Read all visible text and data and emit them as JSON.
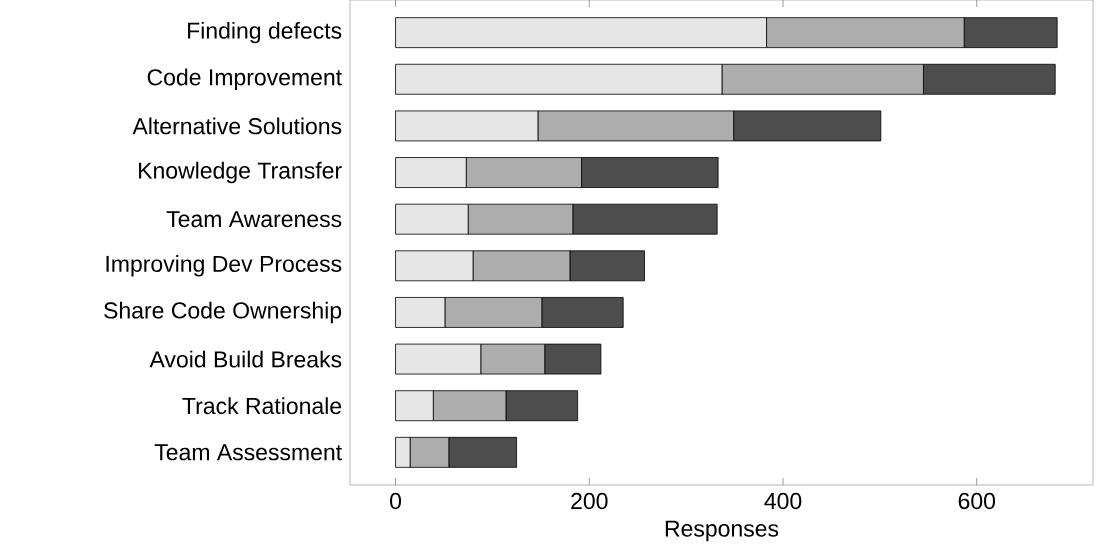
{
  "chart_data": {
    "type": "bar",
    "orientation": "horizontal",
    "stacked": true,
    "xlabel": "Responses",
    "categories": [
      "Finding defects",
      "Code Improvement",
      "Alternative Solutions",
      "Knowledge Transfer",
      "Team Awareness",
      "Improving Dev Process",
      "Share Code Ownership",
      "Avoid Build Breaks",
      "Track Rationale",
      "Team Assessment"
    ],
    "series": [
      {
        "color": "#e6e6e6",
        "values": [
          383,
          337,
          147,
          73,
          75,
          80,
          51,
          88,
          39,
          15
        ]
      },
      {
        "color": "#adadad",
        "values": [
          204,
          208,
          202,
          119,
          108,
          100,
          100,
          66,
          75,
          40
        ]
      },
      {
        "color": "#4d4d4d",
        "values": [
          96,
          136,
          152,
          141,
          149,
          77,
          84,
          58,
          74,
          70
        ]
      }
    ],
    "xlim": [
      -47,
      720
    ],
    "xticks": [
      0,
      200,
      400,
      600
    ]
  }
}
